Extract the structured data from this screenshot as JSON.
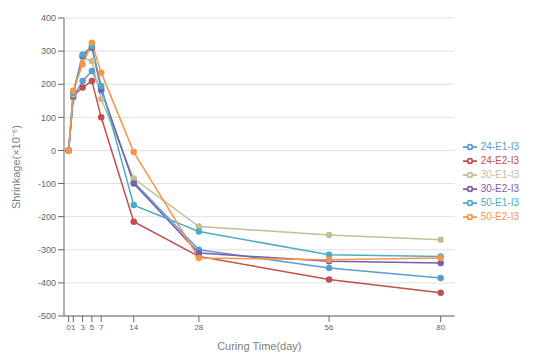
{
  "chart_data": {
    "type": "line",
    "x": [
      0,
      1,
      3,
      5,
      7,
      14,
      28,
      56,
      80
    ],
    "xlim": [
      -1,
      83
    ],
    "xticks": [
      0,
      1,
      3,
      5,
      7,
      14,
      28,
      56,
      80
    ],
    "xlabel": "Curing Time(day)",
    "ylabel": "Shrinkage(×10⁻⁶)",
    "ylim": [
      -500,
      400
    ],
    "yticks": [
      -500,
      -400,
      -300,
      -200,
      -100,
      0,
      100,
      200,
      300,
      400
    ],
    "grid": true,
    "legend": "right",
    "series": [
      {
        "name": "24-E1-I3",
        "color": "#5B9BD5",
        "marker": "circle",
        "values": [
          0,
          160,
          210,
          240,
          180,
          -95,
          -300,
          -355,
          -385
        ]
      },
      {
        "name": "24-E2-I3",
        "color": "#C0504D",
        "marker": "circle",
        "values": [
          0,
          165,
          190,
          210,
          100,
          -215,
          -320,
          -390,
          -430
        ]
      },
      {
        "name": "30-E1-I3",
        "color": "#C4BD97",
        "marker": "circle",
        "values": [
          0,
          170,
          280,
          270,
          155,
          -85,
          -230,
          -255,
          -270
        ]
      },
      {
        "name": "30-E2-I3",
        "color": "#7B5EA7",
        "marker": "circle",
        "values": [
          0,
          175,
          285,
          310,
          185,
          -100,
          -310,
          -335,
          -340
        ]
      },
      {
        "name": "50-E1-I3",
        "color": "#4BACC6",
        "marker": "circle",
        "values": [
          0,
          175,
          290,
          315,
          195,
          -165,
          -245,
          -315,
          -320
        ]
      },
      {
        "name": "50-E2-I3",
        "color": "#F79646",
        "marker": "circle",
        "values": [
          0,
          180,
          260,
          325,
          235,
          -5,
          -325,
          -330,
          -325
        ]
      }
    ]
  }
}
